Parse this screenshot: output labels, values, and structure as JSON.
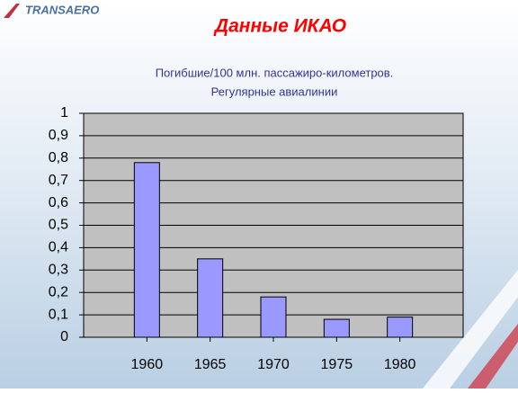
{
  "logo": "TRANSAERO",
  "chart_data": {
    "type": "bar",
    "title": "Данные  ИКАО",
    "subtitle": [
      "Погибшие/100  млн. пассажиро-километров.",
      "Регулярные  авиалинии"
    ],
    "categories": [
      "1960",
      "1965",
      "1970",
      "1975",
      "1980"
    ],
    "values": [
      0.78,
      0.35,
      0.18,
      0.08,
      0.09
    ],
    "color": "#9999ff",
    "ylim": [
      0,
      1
    ],
    "yticks": [
      0,
      {
        "value": 0.1,
        "label": "0,1"
      },
      {
        "value": 0.2,
        "label": "0,2"
      },
      {
        "value": 0.3,
        "label": "0,3"
      },
      {
        "value": 0.4,
        "label": "0,4"
      },
      {
        "value": 0.5,
        "label": "0,5"
      },
      {
        "value": 0.6,
        "label": "0,6"
      },
      {
        "value": 0.7,
        "label": "0,7"
      },
      {
        "value": 0.8,
        "label": "0,8"
      },
      {
        "value": 0.9,
        "label": "0,9"
      },
      1
    ],
    "grid": true
  }
}
